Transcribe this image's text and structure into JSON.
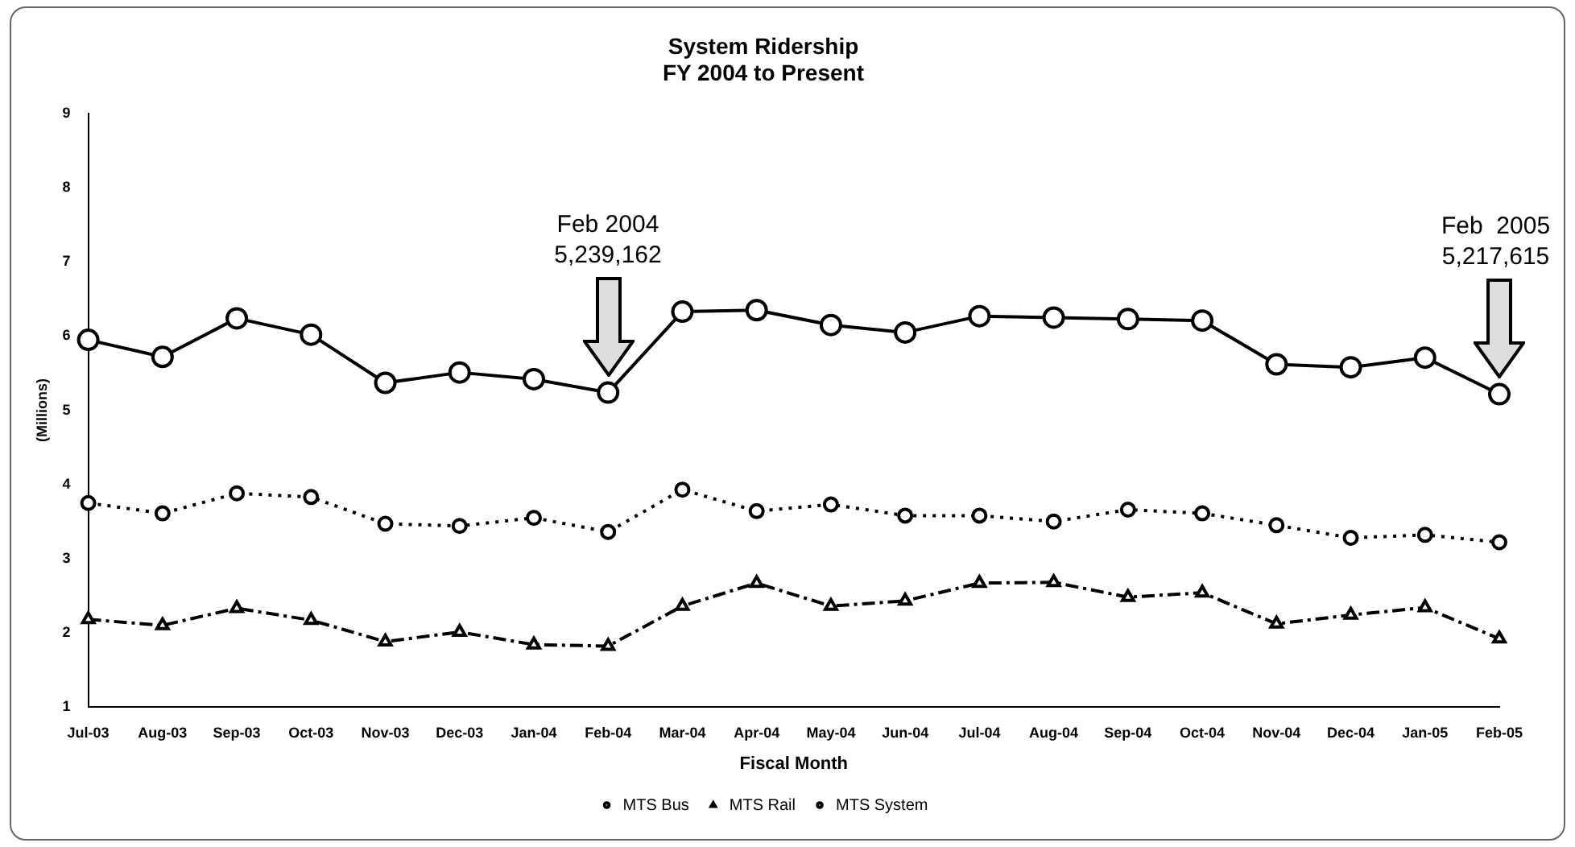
{
  "chart_data": {
    "type": "line",
    "title": "System Ridership",
    "subtitle": "FY 2004 to Present",
    "xlabel": "Fiscal Month",
    "ylabel": "(Millions)",
    "categories": [
      "Jul-03",
      "Aug-03",
      "Sep-03",
      "Oct-03",
      "Nov-03",
      "Dec-03",
      "Jan-04",
      "Feb-04",
      "Mar-04",
      "Apr-04",
      "May-04",
      "Jun-04",
      "Jul-04",
      "Aug-04",
      "Sep-04",
      "Oct-04",
      "Nov-04",
      "Dec-04",
      "Jan-05",
      "Feb-05"
    ],
    "series": [
      {
        "name": "MTS Bus",
        "color": "#000000",
        "marker": "circle",
        "line_style": "dotted",
        "values": [
          3.75,
          3.61,
          3.88,
          3.83,
          3.47,
          3.44,
          3.55,
          3.36,
          3.93,
          3.64,
          3.73,
          3.58,
          3.58,
          3.5,
          3.66,
          3.61,
          3.45,
          3.28,
          3.32,
          3.22
        ]
      },
      {
        "name": "MTS Rail",
        "color": "#000000",
        "marker": "triangle",
        "line_style": "dashed",
        "values": [
          2.18,
          2.1,
          2.33,
          2.17,
          1.88,
          2.01,
          1.84,
          1.82,
          2.36,
          2.67,
          2.36,
          2.43,
          2.67,
          2.68,
          2.48,
          2.54,
          2.12,
          2.24,
          2.34,
          1.92
        ]
      },
      {
        "name": "MTS System",
        "color": "#000000",
        "marker": "circle",
        "line_style": "solid",
        "values": [
          5.95,
          5.72,
          6.24,
          6.02,
          5.37,
          5.51,
          5.42,
          5.239162,
          6.33,
          6.35,
          6.15,
          6.05,
          6.27,
          6.25,
          6.23,
          6.21,
          5.62,
          5.58,
          5.71,
          5.217615
        ]
      }
    ],
    "ylim": [
      1,
      9
    ],
    "yticks": [
      1,
      2,
      3,
      4,
      5,
      6,
      7,
      8,
      9
    ],
    "grid": false,
    "legend": "bottom",
    "annotations": [
      "Feb 2004\n5,239,162",
      "Feb  2005\n5,217,615"
    ]
  }
}
